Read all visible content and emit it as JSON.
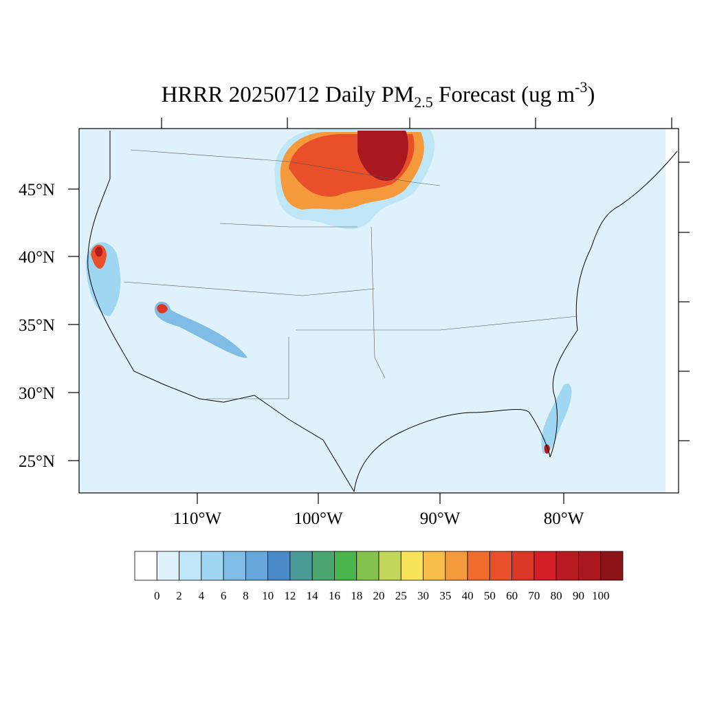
{
  "title": {
    "main": "HRRR 20250712 Daily PM",
    "sub": "2.5",
    "rest": " Forecast (ug m",
    "sup": "-3",
    "close": ")"
  },
  "map": {
    "lat_labels": [
      "45°N",
      "40°N",
      "35°N",
      "30°N",
      "25°N"
    ],
    "lon_labels": [
      "110°W",
      "100°W",
      "90°W",
      "80°W"
    ]
  },
  "colorbar": {
    "levels": [
      0,
      2,
      4,
      6,
      8,
      10,
      12,
      14,
      16,
      18,
      20,
      25,
      30,
      35,
      40,
      50,
      60,
      70,
      80,
      90,
      100
    ],
    "colors": [
      "#ffffff",
      "#dff2fb",
      "#bfe6f7",
      "#9fd6f2",
      "#80bde6",
      "#66a6da",
      "#4a8ac8",
      "#4a9a9a",
      "#48a66e",
      "#4ab54a",
      "#84c44e",
      "#c2d65a",
      "#f8e45a",
      "#f8bc48",
      "#f49a3c",
      "#f06c2c",
      "#e8502a",
      "#dc3626",
      "#d21e26",
      "#b81a22",
      "#a8181e",
      "#8c1418"
    ]
  }
}
